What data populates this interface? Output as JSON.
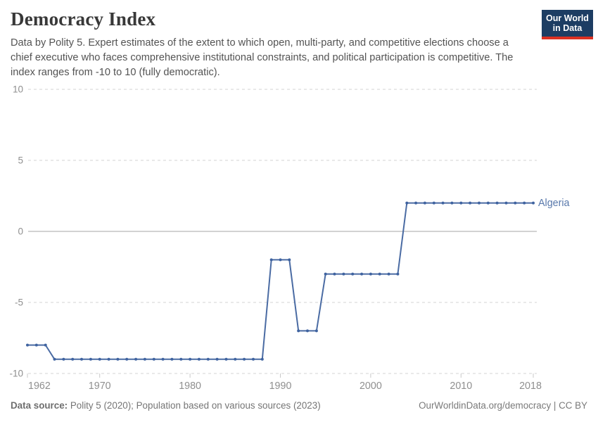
{
  "header": {
    "title": "Democracy Index",
    "logo": {
      "line1": "Our World",
      "line2": "in Data"
    }
  },
  "subtitle_lines": [
    "Data by Polity 5. Expert estimates of the extent to which open, multi-party, and competitive elections choose a",
    "chief executive who faces comprehensive institutional constraints, and political participation is competitive. The",
    "index ranges from -10 to 10 (fully democratic)."
  ],
  "footer": {
    "source_label": "Data source:",
    "source_text": " Polity 5 (2020); Population based on various sources (2023)",
    "credit": "OurWorldinData.org/democracy | CC BY"
  },
  "colors": {
    "line": "#4a6ba3",
    "dot": "#3f63a0",
    "entity_label": "#5878ab",
    "grid": "#e2e2e2",
    "zero_line": "#a5a5a5",
    "tick_mark": "#c8c8c8",
    "axis_text": "#8f8f8f",
    "logo_navy": "#1d3d63",
    "logo_red": "#dc3122"
  },
  "chart_data": {
    "type": "line",
    "title": "Democracy Index",
    "xlabel": "",
    "ylabel": "",
    "ylim": [
      -10,
      10
    ],
    "xlim": [
      1962,
      2018
    ],
    "y_ticks": [
      10,
      5,
      0,
      -5,
      -10
    ],
    "x_ticks": [
      1962,
      1970,
      1980,
      1990,
      2000,
      2010,
      2018
    ],
    "grid": "horizontal dashed gridlines, solid zero line",
    "legend_position": "label at end of line",
    "x": [
      1962,
      1963,
      1964,
      1965,
      1966,
      1967,
      1968,
      1969,
      1970,
      1971,
      1972,
      1973,
      1974,
      1975,
      1976,
      1977,
      1978,
      1979,
      1980,
      1981,
      1982,
      1983,
      1984,
      1985,
      1986,
      1987,
      1988,
      1989,
      1990,
      1991,
      1992,
      1993,
      1994,
      1995,
      1996,
      1997,
      1998,
      1999,
      2000,
      2001,
      2002,
      2003,
      2004,
      2005,
      2006,
      2007,
      2008,
      2009,
      2010,
      2011,
      2012,
      2013,
      2014,
      2015,
      2016,
      2017,
      2018
    ],
    "series": [
      {
        "name": "Algeria",
        "values": [
          -8,
          -8,
          -8,
          -9,
          -9,
          -9,
          -9,
          -9,
          -9,
          -9,
          -9,
          -9,
          -9,
          -9,
          -9,
          -9,
          -9,
          -9,
          -9,
          -9,
          -9,
          -9,
          -9,
          -9,
          -9,
          -9,
          -9,
          -2,
          -2,
          -2,
          -7,
          -7,
          -7,
          -3,
          -3,
          -3,
          -3,
          -3,
          -3,
          -3,
          -3,
          -3,
          2,
          2,
          2,
          2,
          2,
          2,
          2,
          2,
          2,
          2,
          2,
          2,
          2,
          2,
          2
        ]
      }
    ]
  }
}
